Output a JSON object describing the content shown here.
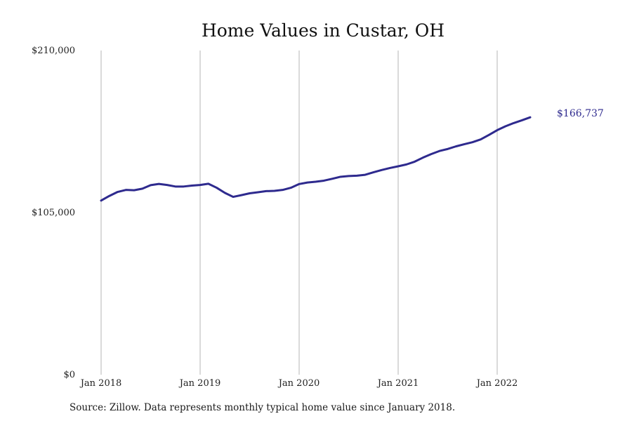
{
  "chart_data": {
    "type": "line",
    "title": "Home Values in Custar, OH",
    "xlabel": "",
    "ylabel": "",
    "x_tick_labels": [
      "Jan 2018",
      "Jan 2019",
      "Jan 2020",
      "Jan 2021",
      "Jan 2022"
    ],
    "y_tick_labels": [
      "$0",
      "$105,000",
      "$210,000"
    ],
    "ylim": [
      0,
      210000
    ],
    "xlim": [
      "2018-01",
      "2022-12"
    ],
    "grid": {
      "vertical": true,
      "horizontal": false
    },
    "end_label": "$166,737",
    "line_color": "#2e2a8e",
    "series": [
      {
        "x": [
          "2018-01",
          "2018-02",
          "2018-03",
          "2018-04",
          "2018-05",
          "2018-06",
          "2018-07",
          "2018-08",
          "2018-09",
          "2018-10",
          "2018-11",
          "2018-12",
          "2019-01",
          "2019-02",
          "2019-03",
          "2019-04",
          "2019-05",
          "2019-06",
          "2019-07",
          "2019-08",
          "2019-09",
          "2019-10",
          "2019-11",
          "2019-12",
          "2020-01",
          "2020-02",
          "2020-03",
          "2020-04",
          "2020-05",
          "2020-06",
          "2020-07",
          "2020-08",
          "2020-09",
          "2020-10",
          "2020-11",
          "2020-12",
          "2021-01",
          "2021-02",
          "2021-03",
          "2021-04",
          "2021-05",
          "2021-06",
          "2021-07",
          "2021-08",
          "2021-09",
          "2021-10",
          "2021-11",
          "2021-12",
          "2022-01",
          "2022-02",
          "2022-03",
          "2022-04",
          "2022-05"
        ],
        "values": [
          112800,
          115800,
          118400,
          119700,
          119500,
          120500,
          122800,
          123600,
          122900,
          121900,
          121900,
          122500,
          122900,
          123700,
          121100,
          117800,
          115200,
          116300,
          117500,
          118200,
          118900,
          119100,
          119700,
          121100,
          123500,
          124500,
          125000,
          125700,
          126900,
          128200,
          128700,
          128900,
          129500,
          131100,
          132600,
          133900,
          135000,
          136200,
          138000,
          140600,
          142900,
          144900,
          146200,
          147900,
          149300,
          150600,
          152400,
          155300,
          158400,
          160900,
          163000,
          164800,
          166737
        ]
      }
    ]
  },
  "footer": {
    "source": "Source: Zillow. Data represents monthly typical home value since January 2018."
  }
}
